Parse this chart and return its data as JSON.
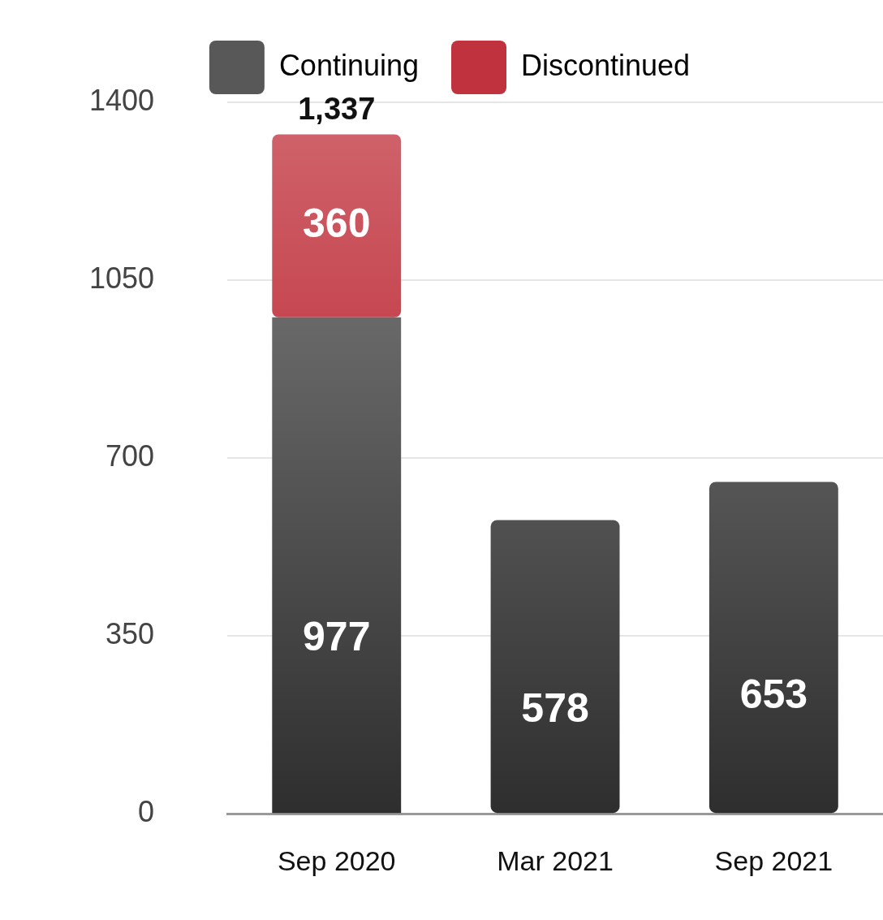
{
  "chart_data": {
    "type": "bar",
    "stacked": true,
    "categories": [
      "Sep 2020",
      "Mar 2021",
      "Sep 2021"
    ],
    "series": [
      {
        "name": "Continuing",
        "color": "#2e2e2e",
        "values": [
          977,
          578,
          653
        ]
      },
      {
        "name": "Discontinued",
        "color": "#b0000e",
        "values": [
          360,
          null,
          null
        ]
      }
    ],
    "totals": [
      "1,337",
      null,
      null
    ],
    "data_labels": true,
    "ylim": [
      0,
      1400
    ],
    "yticks": [
      0,
      350,
      700,
      1050,
      1400
    ],
    "grid": "y",
    "legend": "top"
  }
}
